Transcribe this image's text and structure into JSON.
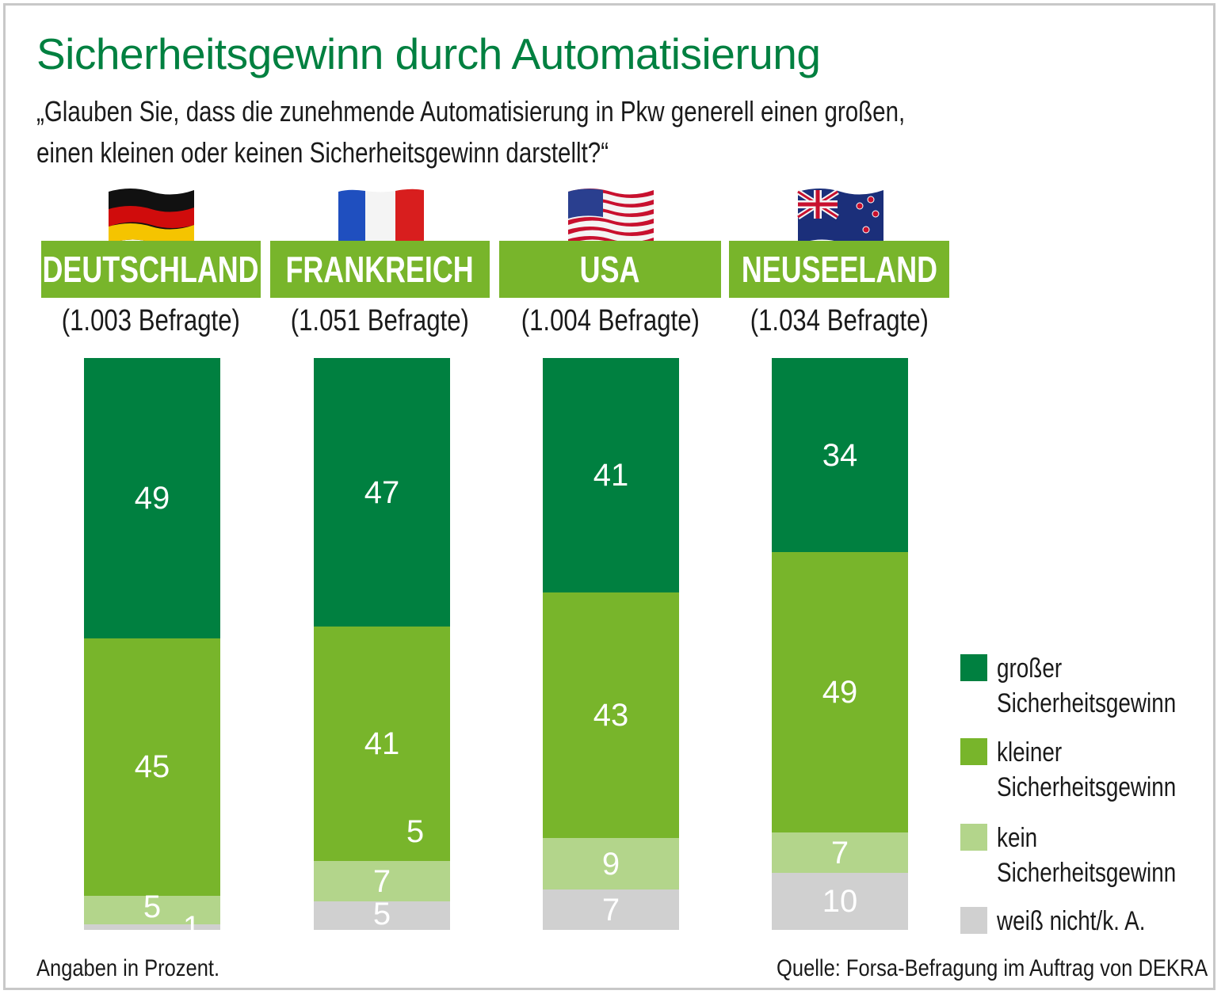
{
  "colors": {
    "gross": "#008040",
    "klein": "#78b52b",
    "kein": "#b3d58b",
    "unknown": "#d0d0d0",
    "banner": "#78b52b",
    "title": "#008040"
  },
  "header": {
    "title": "Sicherheitsgewinn durch Automatisierung",
    "question_line1": "„Glauben Sie, dass die zunehmende Automatisierung in Pkw generell einen großen,",
    "question_line2": "einen kleinen oder keinen Sicherheitsgewinn darstellt?“"
  },
  "countries": [
    {
      "name": "DEUTSCHLAND",
      "respondents": "(1.003 Befragte)",
      "flag_icon": "germany-flag-icon"
    },
    {
      "name": "FRANKREICH",
      "respondents": "(1.051 Befragte)",
      "flag_icon": "france-flag-icon"
    },
    {
      "name": "USA",
      "respondents": "(1.004 Befragte)",
      "flag_icon": "usa-flag-icon"
    },
    {
      "name": "NEUSEELAND",
      "respondents": "(1.034 Befragte)",
      "flag_icon": "new-zealand-flag-icon"
    }
  ],
  "chart_data": {
    "type": "bar",
    "stacked": true,
    "unit": "Prozent",
    "categories": [
      "DEUTSCHLAND",
      "FRANKREICH",
      "USA",
      "NEUSEELAND"
    ],
    "series": [
      {
        "name": "großer Sicherheitsgewinn",
        "values": [
          49,
          47,
          41,
          34
        ]
      },
      {
        "name": "kleiner Sicherheitsgewinn",
        "values": [
          45,
          41,
          43,
          49
        ]
      },
      {
        "name": "kein Sicherheitsgewinn",
        "values": [
          5,
          7,
          9,
          7
        ]
      },
      {
        "name": "weiß nicht/k. A.",
        "values": [
          1,
          5,
          7,
          10
        ]
      }
    ],
    "extra_labels": [
      {
        "category": "FRANKREICH",
        "value": "5"
      }
    ],
    "legend_position": "right"
  },
  "legend": [
    {
      "line1": "großer",
      "line2": "Sicherheitsgewinn"
    },
    {
      "line1": "kleiner",
      "line2": "Sicherheitsgewinn"
    },
    {
      "line1": "kein",
      "line2": "Sicherheitsgewinn"
    },
    {
      "line1": "weiß nicht/k. A.",
      "line2": ""
    }
  ],
  "footer": {
    "note": "Angaben in Prozent.",
    "source": "Quelle: Forsa-Befragung im Auftrag von DEKRA"
  }
}
